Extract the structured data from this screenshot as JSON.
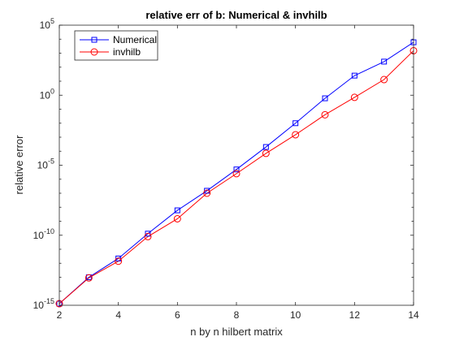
{
  "chart_data": {
    "type": "line",
    "title": "relative err of b: Numerical & invhilb",
    "xlabel": "n by n hilbert matrix",
    "ylabel": "relative error",
    "yscale": "log",
    "xlim": [
      2,
      14
    ],
    "ylim_exponents": [
      -15,
      5
    ],
    "ylim": [
      1e-15,
      100000
    ],
    "x": [
      2,
      3,
      4,
      5,
      6,
      7,
      8,
      9,
      10,
      11,
      12,
      13,
      14
    ],
    "x_ticks": [
      2,
      4,
      6,
      8,
      10,
      12,
      14
    ],
    "y_tick_exponents": [
      -15,
      -10,
      -5,
      0,
      5
    ],
    "y_tick_base": "10",
    "grid": false,
    "legend_position": "top-left",
    "series": [
      {
        "name": "Numerical",
        "color": "#0000ff",
        "marker": "square",
        "values": [
          1.3e-15,
          1e-13,
          2.2e-12,
          1.3e-10,
          6e-09,
          1.5e-07,
          5e-06,
          0.0002,
          0.01,
          0.6,
          25,
          250,
          6000
        ]
      },
      {
        "name": "invhilb",
        "color": "#ff0000",
        "marker": "circle",
        "values": [
          1.3e-15,
          9e-14,
          1.4e-12,
          8e-11,
          1.5e-09,
          1e-07,
          2.5e-06,
          7e-05,
          0.0015,
          0.04,
          0.7,
          13,
          1500
        ]
      }
    ]
  }
}
